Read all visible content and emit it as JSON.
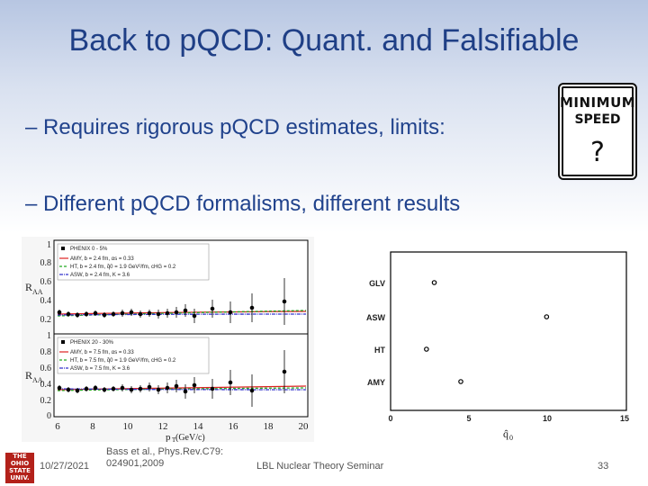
{
  "title": "Back to pQCD: Quant. and Falsifiable",
  "bullets": [
    "– Requires rigorous pQCD estimates, limits:",
    "– Different pQCD formalisms, different results"
  ],
  "sign": {
    "line1": "MINIMUM",
    "line2": "SPEED",
    "mark": "?"
  },
  "left_figure": {
    "panel_top_legend": [
      "PHENIX 0 - 5%",
      "AMY, b = 2.4 fm, αs = 0.33",
      "HT, b = 2.4 fm, q̂0 = 1.9 GeV²/fm, cHG = 0.2",
      "ASW, b = 2.4 fm, K = 3.6"
    ],
    "panel_bottom_legend": [
      "PHENIX 20 - 30%",
      "AMY, b = 7.5 fm, αs = 0.33",
      "HT, b = 7.5 fm, q̂0 = 1.9 GeV²/fm, cHG = 0.2",
      "ASW, b = 7.5 fm, K = 3.6"
    ],
    "y_ticks_top": [
      "1",
      "0.8",
      "0.6",
      "0.4",
      "0.2"
    ],
    "y_ticks_bottom": [
      "1",
      "0.8",
      "0.6",
      "0.4",
      "0.2",
      "0"
    ],
    "x_ticks": [
      "6",
      "8",
      "10",
      "12",
      "14",
      "16",
      "18",
      "20"
    ],
    "ylabel": "R",
    "ylabel_sub": "AA",
    "xlabel": "p",
    "xlabel_sub": "T",
    "xlabel_unit": " (GeV/c)"
  },
  "right_figure": {
    "categories": [
      "GLV",
      "ASW",
      "HT",
      "AMY"
    ],
    "x_ticks": [
      "0",
      "5",
      "10",
      "15"
    ],
    "xlabel": "q̂",
    "xlabel_sub": "0",
    "xlim": [
      0,
      15
    ],
    "points": [
      {
        "label": "GLV",
        "x": 2.8
      },
      {
        "label": "ASW",
        "x": 10.0
      },
      {
        "label": "HT",
        "x": 2.3
      },
      {
        "label": "AMY",
        "x": 4.5
      }
    ]
  },
  "footer": {
    "date": "10/27/2021",
    "reference_line1": "Bass et al., Phys.Rev.C79:",
    "reference_line2": "024901,2009",
    "seminar": "LBL Nuclear Theory Seminar",
    "page": "33"
  },
  "logo": {
    "lines": [
      "THE",
      "OHIO",
      "STATE",
      "UNIV."
    ]
  }
}
